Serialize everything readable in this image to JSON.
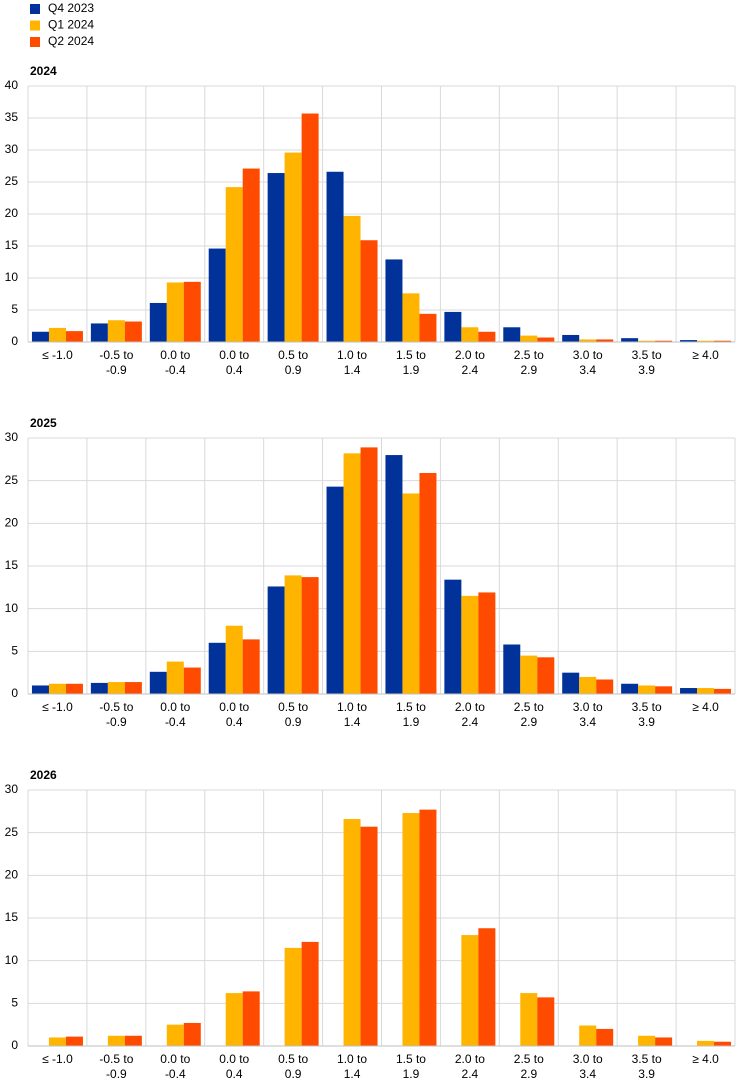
{
  "chart_data": [
    {
      "type": "bar",
      "title": "2024",
      "categories": [
        [
          "≤ -1.0"
        ],
        [
          "-0.5  to",
          "-0.9"
        ],
        [
          "0.0  to",
          "-0.4"
        ],
        [
          "0.0  to",
          "0.4"
        ],
        [
          "0.5  to",
          "0.9"
        ],
        [
          "1.0  to",
          "1.4"
        ],
        [
          "1.5  to",
          "1.9"
        ],
        [
          "2.0  to",
          "2.4"
        ],
        [
          "2.5  to",
          "2.9"
        ],
        [
          "3.0  to",
          "3.4"
        ],
        [
          "3.5  to",
          "3.9"
        ],
        [
          "≥ 4.0"
        ]
      ],
      "series": [
        {
          "name": "Q4 2023",
          "color": "#003299",
          "values": [
            1.6,
            2.9,
            6.1,
            14.6,
            26.4,
            26.6,
            12.9,
            4.7,
            2.3,
            1.1,
            0.6,
            0.3
          ]
        },
        {
          "name": "Q1 2024",
          "color": "#ffb400",
          "values": [
            2.2,
            3.4,
            9.3,
            24.2,
            29.6,
            19.7,
            7.6,
            2.3,
            1.0,
            0.4,
            0.2,
            0.2
          ]
        },
        {
          "name": "Q2 2024",
          "color": "#ff4b00",
          "values": [
            1.7,
            3.2,
            9.4,
            27.1,
            35.7,
            15.9,
            4.4,
            1.6,
            0.7,
            0.4,
            0.2,
            0.2
          ]
        }
      ],
      "ylim": [
        0,
        40
      ],
      "yticks": [
        0,
        5,
        10,
        15,
        20,
        25,
        30,
        35,
        40
      ],
      "grid": true,
      "legend": "top-left"
    },
    {
      "type": "bar",
      "title": "2025",
      "categories": [
        [
          "≤ -1.0"
        ],
        [
          "-0.5  to",
          "-0.9"
        ],
        [
          "0.0  to",
          "-0.4"
        ],
        [
          "0.0  to",
          "0.4"
        ],
        [
          "0.5  to",
          "0.9"
        ],
        [
          "1.0  to",
          "1.4"
        ],
        [
          "1.5  to",
          "1.9"
        ],
        [
          "2.0  to",
          "2.4"
        ],
        [
          "2.5  to",
          "2.9"
        ],
        [
          "3.0  to",
          "3.4"
        ],
        [
          "3.5  to",
          "3.9"
        ],
        [
          "≥ 4.0"
        ]
      ],
      "series": [
        {
          "color": "#003299",
          "values": [
            1.0,
            1.3,
            2.6,
            6.0,
            12.6,
            24.3,
            28.0,
            13.4,
            5.8,
            2.5,
            1.2,
            0.7
          ]
        },
        {
          "color": "#ffb400",
          "values": [
            1.2,
            1.4,
            3.8,
            8.0,
            13.9,
            28.2,
            23.5,
            11.5,
            4.5,
            2.0,
            1.0,
            0.7
          ]
        },
        {
          "color": "#ff4b00",
          "values": [
            1.2,
            1.4,
            3.1,
            6.4,
            13.7,
            28.9,
            25.9,
            11.9,
            4.3,
            1.7,
            0.9,
            0.6
          ]
        }
      ],
      "ylim": [
        0,
        30
      ],
      "yticks": [
        0,
        5,
        10,
        15,
        20,
        25,
        30
      ],
      "grid": true
    },
    {
      "type": "bar",
      "title": "2026",
      "categories": [
        [
          "≤ -1.0"
        ],
        [
          "-0.5  to",
          "-0.9"
        ],
        [
          "0.0  to",
          "-0.4"
        ],
        [
          "0.0  to",
          "0.4"
        ],
        [
          "0.5  to",
          "0.9"
        ],
        [
          "1.0  to",
          "1.4"
        ],
        [
          "1.5  to",
          "1.9"
        ],
        [
          "2.0  to",
          "2.4"
        ],
        [
          "2.5  to",
          "2.9"
        ],
        [
          "3.0  to",
          "3.4"
        ],
        [
          "3.5  to",
          "3.9"
        ],
        [
          "≥ 4.0"
        ]
      ],
      "series": [
        {
          "color": "#003299",
          "values": [
            null,
            null,
            null,
            null,
            null,
            null,
            null,
            null,
            null,
            null,
            null,
            null
          ]
        },
        {
          "color": "#ffb400",
          "values": [
            1.0,
            1.2,
            2.5,
            6.2,
            11.5,
            26.6,
            27.3,
            13.0,
            6.2,
            2.4,
            1.2,
            0.6
          ]
        },
        {
          "color": "#ff4b00",
          "values": [
            1.1,
            1.2,
            2.7,
            6.4,
            12.2,
            25.7,
            27.7,
            13.8,
            5.7,
            2.0,
            1.0,
            0.5
          ]
        }
      ],
      "ylim": [
        0,
        30
      ],
      "yticks": [
        0,
        5,
        10,
        15,
        20,
        25,
        30
      ],
      "grid": true
    }
  ]
}
